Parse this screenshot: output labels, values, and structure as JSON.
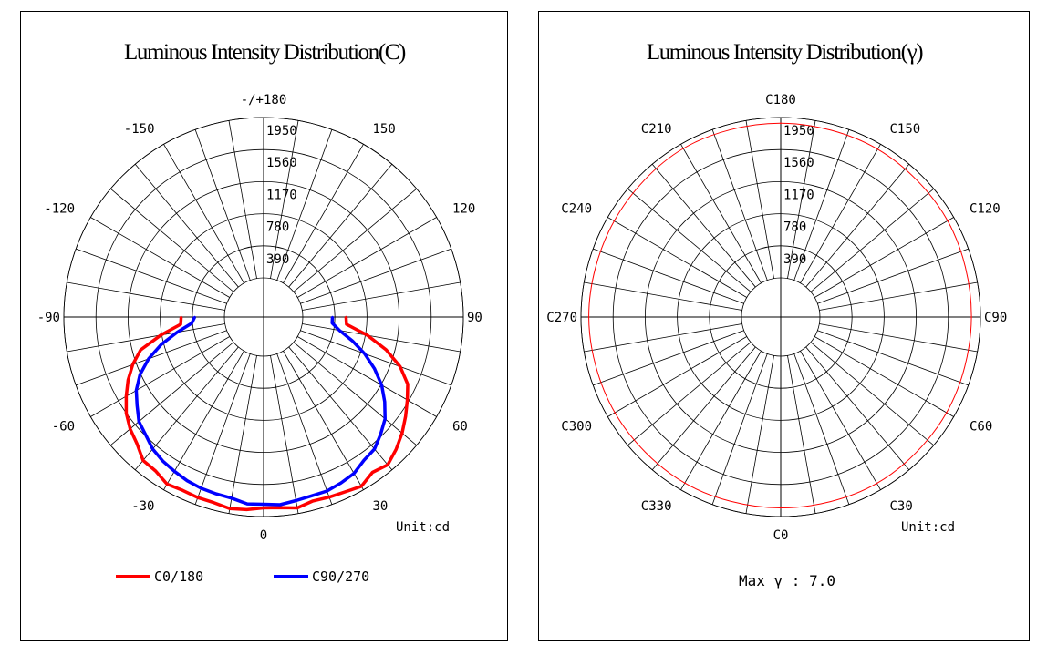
{
  "chart_data": [
    {
      "type": "polar",
      "title": "Luminous Intensity Distribution(C)",
      "unit_label": "Unit:cd",
      "radial_max": 1950,
      "radial_ticks": [
        390,
        780,
        1170,
        1560,
        1950
      ],
      "angle_labels": [
        "-/+180",
        "150",
        "120",
        "90",
        "60",
        "30",
        "0",
        "-30",
        "-60",
        "-90",
        "-120",
        "-150"
      ],
      "series": [
        {
          "name": "C0/180",
          "color": "#ff0000",
          "gamma_deg": [
            0,
            5,
            10,
            15,
            20,
            25,
            30,
            35,
            40,
            45,
            50,
            55,
            60,
            65,
            70,
            75,
            80,
            85,
            90
          ],
          "right_cd": [
            1845,
            1850,
            1880,
            1840,
            1855,
            1870,
            1900,
            1830,
            1870,
            1800,
            1720,
            1630,
            1540,
            1455,
            1290,
            1065,
            805,
            535,
            525
          ],
          "left_cd": [
            1845,
            1875,
            1890,
            1860,
            1860,
            1850,
            1870,
            1810,
            1800,
            1700,
            1640,
            1560,
            1450,
            1340,
            1215,
            1070,
            790,
            535,
            525
          ]
        },
        {
          "name": "C90/270",
          "color": "#0000ff",
          "gamma_deg": [
            0,
            5,
            10,
            15,
            20,
            25,
            30,
            35,
            40,
            45,
            50,
            55,
            60,
            65,
            70,
            75,
            80,
            85,
            90
          ],
          "right_cd": [
            1800,
            1815,
            1790,
            1775,
            1775,
            1750,
            1720,
            1650,
            1620,
            1535,
            1450,
            1320,
            1180,
            1010,
            830,
            640,
            460,
            360,
            360
          ],
          "left_cd": [
            1800,
            1805,
            1760,
            1750,
            1740,
            1720,
            1690,
            1660,
            1620,
            1550,
            1500,
            1400,
            1310,
            1180,
            1010,
            810,
            590,
            400,
            360
          ]
        }
      ]
    },
    {
      "type": "polar",
      "title": "Luminous Intensity Distribution(γ)",
      "unit_label": "Unit:cd",
      "radial_max": 1950,
      "radial_ticks": [
        390,
        780,
        1170,
        1560,
        1950
      ],
      "angle_labels": [
        "C180",
        "C150",
        "C120",
        "C90",
        "C60",
        "C30",
        "C0",
        "C330",
        "C300",
        "C270",
        "C240",
        "C210"
      ],
      "max_gamma_label": "Max γ : 7.0",
      "series": [
        {
          "name": "γ=7.0",
          "color": "#ff0000",
          "c_deg": [
            0,
            30,
            60,
            90,
            120,
            150,
            180,
            210,
            240,
            270,
            300,
            330
          ],
          "cd": [
            1845,
            1860,
            1850,
            1840,
            1865,
            1880,
            1880,
            1890,
            1860,
            1855,
            1850,
            1855
          ]
        }
      ]
    }
  ]
}
